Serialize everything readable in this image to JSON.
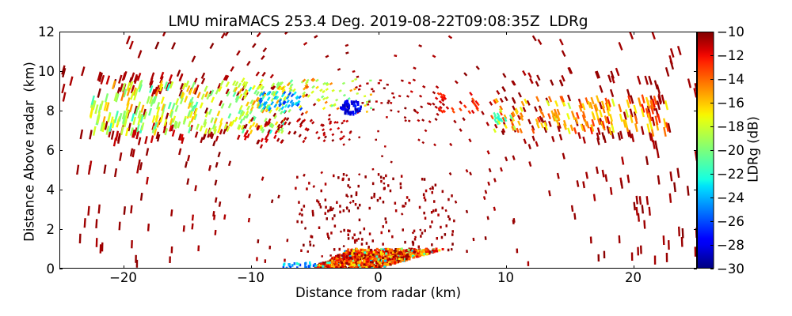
{
  "chart_data": {
    "type": "heatmap",
    "plot_kind": "radar RHI scan",
    "title": "LMU miraMACS 253.4 Deg. 2019-08-22T09:08:35Z  LDRg",
    "xlabel": "Distance from radar (km)",
    "ylabel": "Distance Above radar  (km)",
    "xlim": [
      -25,
      25
    ],
    "ylim": [
      0,
      12
    ],
    "xticks": [
      -20,
      -10,
      0,
      10,
      20
    ],
    "xtick_labels": [
      "−20",
      "−10",
      "0",
      "10",
      "20"
    ],
    "yticks": [
      0,
      2,
      4,
      6,
      8,
      10,
      12
    ],
    "ytick_labels": [
      "0",
      "2",
      "4",
      "6",
      "8",
      "10",
      "12"
    ],
    "grid": false,
    "background": "#ffffff",
    "colorbar": {
      "label": "LDRg (dB)",
      "colormap": "jet",
      "clim": [
        -30,
        -10
      ],
      "placement": "right",
      "ticks": [
        -10,
        -12,
        -14,
        -16,
        -18,
        -20,
        -22,
        -24,
        -26,
        -28,
        -30
      ],
      "tick_labels": [
        "−10",
        "−12",
        "−14",
        "−16",
        "−18",
        "−20",
        "−22",
        "−24",
        "−26",
        "−28",
        "−30"
      ]
    },
    "echo_regions": [
      {
        "name": "background-noise",
        "kind": "streak",
        "x_km": [
          -25,
          25
        ],
        "y_km": [
          0.2,
          12
        ],
        "ldr_db": [
          -11,
          -10
        ],
        "n_gates": 340
      },
      {
        "name": "near-field-noise",
        "kind": "gate",
        "x_km": [
          -6.5,
          6.0
        ],
        "y_km": [
          0.9,
          4.8
        ],
        "ldr_db": [
          -11,
          -10
        ],
        "n_gates": 170
      },
      {
        "name": "left-layer-top-edge",
        "kind": "streak",
        "x_km": [
          -22.0,
          -8.0
        ],
        "y_km": [
          8.9,
          9.9
        ],
        "ldr_db": [
          -11.5,
          -10
        ],
        "n_gates": 45
      },
      {
        "name": "left-layer-bottom-edge",
        "kind": "streak",
        "x_km": [
          -21.5,
          -9.0
        ],
        "y_km": [
          6.4,
          7.3
        ],
        "ldr_db": [
          -12,
          -10
        ],
        "n_gates": 40
      },
      {
        "name": "left-cloud-layer",
        "kind": "streak",
        "x_km": [
          -22.5,
          -7.0
        ],
        "y_km": [
          6.9,
          9.4
        ],
        "ldr_db": [
          -23,
          -14
        ],
        "n_gates": 270
      },
      {
        "name": "center-lower-band",
        "kind": "streak",
        "x_km": [
          -10.5,
          -2.0
        ],
        "y_km": [
          6.4,
          7.6
        ],
        "ldr_db": [
          -12,
          -10
        ],
        "n_gates": 70
      },
      {
        "name": "center-cloud-layer",
        "kind": "streak",
        "x_km": [
          -11.0,
          -0.5
        ],
        "y_km": [
          7.9,
          9.6
        ],
        "ldr_db": [
          -22,
          -13
        ],
        "n_gates": 110
      },
      {
        "name": "center-low-ldr-patch",
        "kind": "streak",
        "x_km": [
          -9.3,
          -6.0
        ],
        "y_km": [
          8.0,
          8.9
        ],
        "ldr_db": [
          -27,
          -21
        ],
        "n_gates": 45
      },
      {
        "name": "mid-upper-scatter",
        "kind": "streak",
        "x_km": [
          -2.0,
          5.0
        ],
        "y_km": [
          7.4,
          9.6
        ],
        "ldr_db": [
          -11.5,
          -10
        ],
        "n_gates": 45
      },
      {
        "name": "mid-right-patch",
        "kind": "streak",
        "x_km": [
          4.5,
          8.0
        ],
        "y_km": [
          7.9,
          8.9
        ],
        "ldr_db": [
          -14,
          -10
        ],
        "n_gates": 35
      },
      {
        "name": "right-layer-dark-red",
        "kind": "streak",
        "x_km": [
          8.5,
          22.5
        ],
        "y_km": [
          6.4,
          9.9
        ],
        "ldr_db": [
          -11,
          -10
        ],
        "n_gates": 80
      },
      {
        "name": "right-cloud-layer",
        "kind": "streak",
        "x_km": [
          8.8,
          22.7
        ],
        "y_km": [
          6.9,
          8.6
        ],
        "ldr_db": [
          -19,
          -11
        ],
        "n_gates": 150
      },
      {
        "name": "right-layer-low-ldr",
        "kind": "streak",
        "x_km": [
          9.0,
          10.5
        ],
        "y_km": [
          7.3,
          8.0
        ],
        "ldr_db": [
          -23,
          -20
        ],
        "n_gates": 10
      },
      {
        "name": "blue-cluster",
        "kind": "gate",
        "shape": "ellipse",
        "center_km": [
          -2.15,
          8.15
        ],
        "half_width_km": 0.8,
        "half_height_km": 0.38,
        "ldr_db": [
          -30,
          -26
        ],
        "n_gates": 80
      },
      {
        "name": "ground-low-ldr",
        "kind": "gate",
        "x_km": [
          -7.5,
          -3.0
        ],
        "y_km": [
          0,
          0.3
        ],
        "ldr_db": [
          -28,
          -21
        ],
        "n_gates": 55
      },
      {
        "name": "ground-clutter",
        "kind": "clutter",
        "shape": "wedge",
        "x_km": [
          -5.0,
          5.2
        ],
        "y_km": [
          0,
          1.0
        ],
        "taper_start_km": -2.0,
        "beam_floor_slope": 0.19,
        "ldr_db": [
          -17,
          -10
        ],
        "low_ldr_fraction": 0.07,
        "low_ldr_db": [
          -24,
          -19
        ],
        "n_gates": 1100
      }
    ]
  }
}
